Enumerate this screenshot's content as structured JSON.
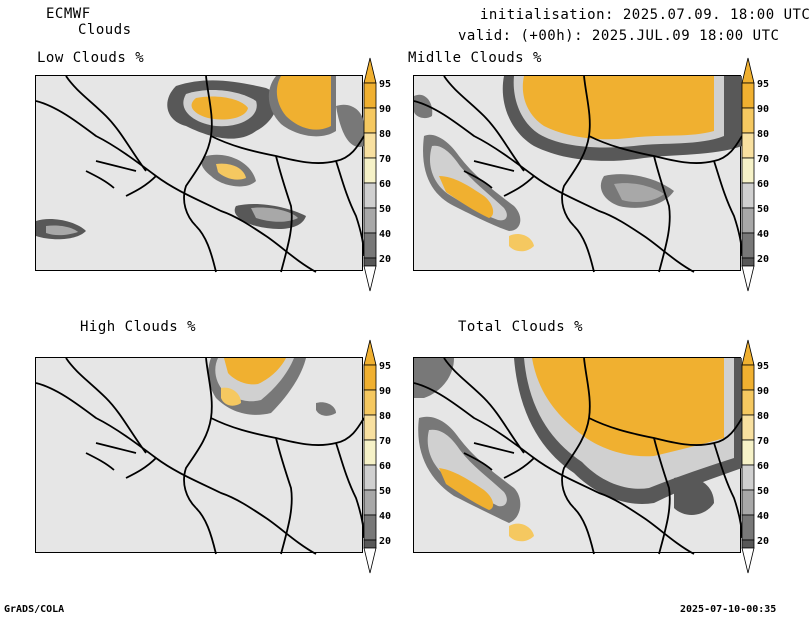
{
  "header": {
    "model": "ECMWF",
    "product": "Clouds",
    "init": "initialisation: 2025.07.09. 18:00 UTC",
    "valid": "valid: (+00h): 2025.JUL.09 18:00 UTC"
  },
  "panels": [
    {
      "title": "Low Clouds %"
    },
    {
      "title": "Midlle Clouds %"
    },
    {
      "title": "High Clouds %"
    },
    {
      "title": "Total Clouds %"
    }
  ],
  "colorbar": {
    "labels": [
      "95",
      "90",
      "80",
      "70",
      "60",
      "50",
      "40",
      "20"
    ],
    "colors": {
      "c95": "#f0b030",
      "c90": "#f5c860",
      "c80": "#f8e0a0",
      "c70": "#f6f2c8",
      "c60": "#d0d0d0",
      "c50": "#a8a8a8",
      "c40": "#787878",
      "c20": "#585858",
      "cbelow": "#ffffff"
    }
  },
  "footer": {
    "left": "GrADS/COLA",
    "right": "2025-07-10-00:35"
  }
}
